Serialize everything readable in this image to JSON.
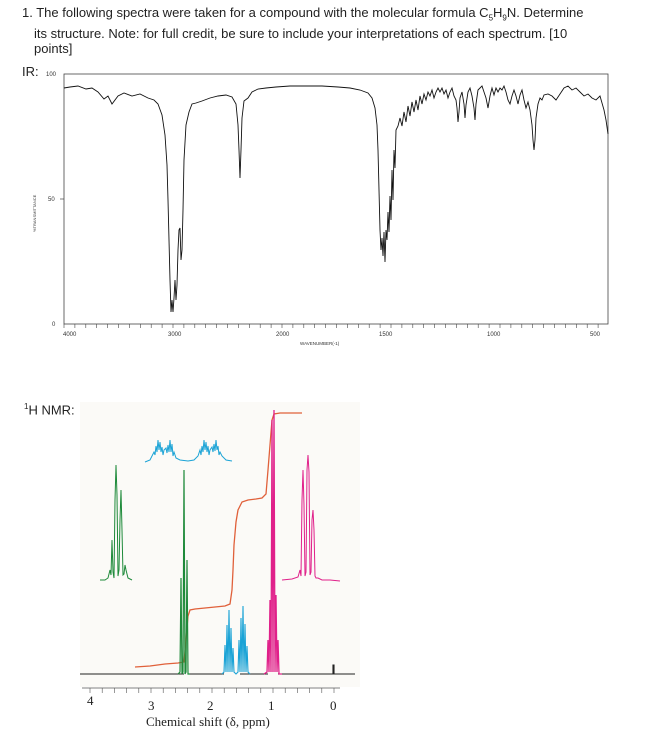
{
  "question": {
    "number": "1.",
    "line1": "The following spectra were taken for a compound with the molecular formula C",
    "formula_c_sub": "5",
    "formula_h": "H",
    "formula_h_sub": "9",
    "formula_n": "N. Determine",
    "line2": "its structure. Note: for full credit, be sure to include your interpretations of each spectrum. [10",
    "line3": "points]"
  },
  "ir": {
    "label": "IR:",
    "y_tick_top": "100",
    "y_tick_mid": "50",
    "y_tick_bottom": "0",
    "y_axis_label": "%TRANSMITTANCE",
    "x_ticks": [
      "4000",
      "3000",
      "2000",
      "1500",
      "1000",
      "500"
    ],
    "x_axis_label": "WAVENUMBER(-1)"
  },
  "nmr": {
    "label_sup": "1",
    "label_main": "H NMR:",
    "x_ticks": [
      "4",
      "3",
      "2",
      "1",
      "0"
    ],
    "x_axis_label": "Chemical shift (δ, ppm)",
    "colors": {
      "green": "#1e8a3a",
      "blue": "#1aa3d6",
      "magenta": "#e0208a",
      "integral": "#e0603a",
      "baseline": "#222222"
    }
  }
}
